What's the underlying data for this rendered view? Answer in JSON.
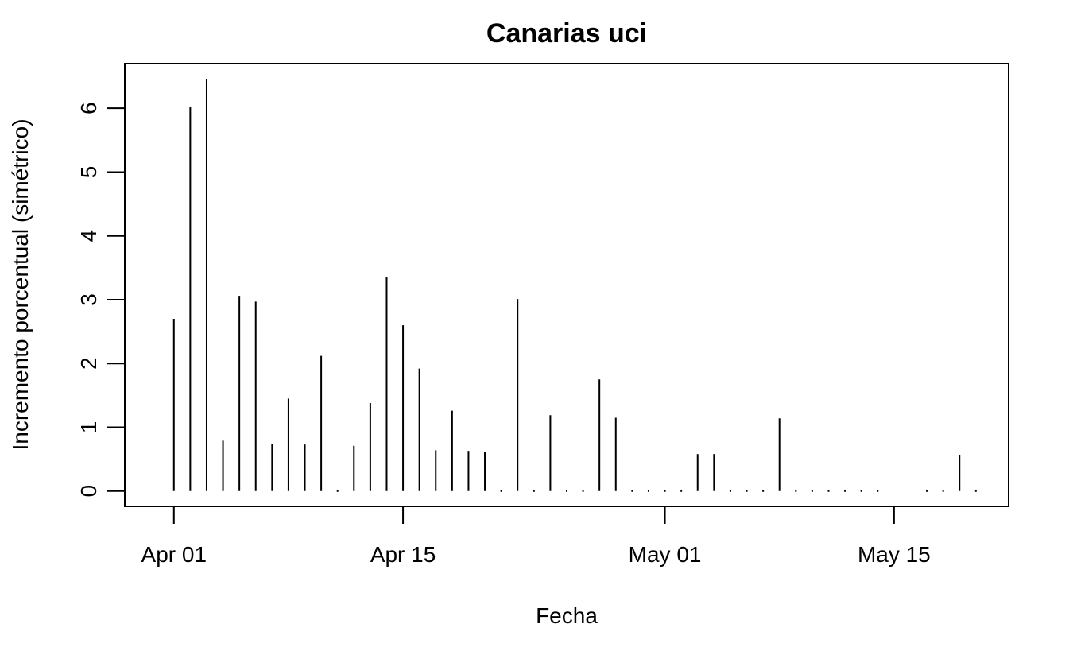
{
  "chart_data": {
    "type": "line",
    "title": "Canarias uci",
    "xlabel": "Fecha",
    "ylabel": "Incremento porcentual (simétrico)",
    "x_axis": {
      "kind": "date",
      "range": [
        "2020-03-29",
        "2020-05-22"
      ],
      "ticks": [
        {
          "date": "2020-04-01",
          "label": "Apr 01"
        },
        {
          "date": "2020-04-15",
          "label": "Apr 15"
        },
        {
          "date": "2020-05-01",
          "label": "May 01"
        },
        {
          "date": "2020-05-15",
          "label": "May 15"
        }
      ]
    },
    "y_axis": {
      "range": [
        -0.24,
        6.7
      ],
      "ticks": [
        0,
        1,
        2,
        3,
        4,
        5,
        6
      ]
    },
    "grid": false,
    "series": [
      {
        "x": [
          "2020-04-01",
          "2020-04-02",
          "2020-04-03",
          "2020-04-04",
          "2020-04-05",
          "2020-04-06",
          "2020-04-07",
          "2020-04-08",
          "2020-04-09",
          "2020-04-10",
          "2020-04-11",
          "2020-04-12",
          "2020-04-13",
          "2020-04-14",
          "2020-04-15",
          "2020-04-16",
          "2020-04-17",
          "2020-04-18",
          "2020-04-19",
          "2020-04-20",
          "2020-04-21",
          "2020-04-22",
          "2020-04-23",
          "2020-04-24",
          "2020-04-25",
          "2020-04-26",
          "2020-04-27",
          "2020-04-28",
          "2020-04-29",
          "2020-04-30",
          "2020-05-01",
          "2020-05-02",
          "2020-05-03",
          "2020-05-04",
          "2020-05-05",
          "2020-05-06",
          "2020-05-07",
          "2020-05-08",
          "2020-05-09",
          "2020-05-10",
          "2020-05-11",
          "2020-05-12",
          "2020-05-13",
          "2020-05-14",
          "2020-05-17",
          "2020-05-18",
          "2020-05-19",
          "2020-05-20"
        ],
        "values": [
          2.7,
          6.02,
          6.46,
          0.79,
          3.06,
          2.97,
          0.74,
          1.45,
          0.73,
          2.12,
          0,
          0.71,
          1.38,
          3.35,
          2.6,
          1.92,
          0.64,
          1.26,
          0.63,
          0.62,
          0,
          3.01,
          0,
          1.19,
          0,
          0,
          1.75,
          1.15,
          0,
          0,
          0,
          0,
          0.58,
          0.58,
          0,
          0,
          0,
          1.14,
          0,
          0,
          0,
          0,
          0,
          0,
          0,
          0,
          0.57,
          0
        ]
      }
    ]
  }
}
